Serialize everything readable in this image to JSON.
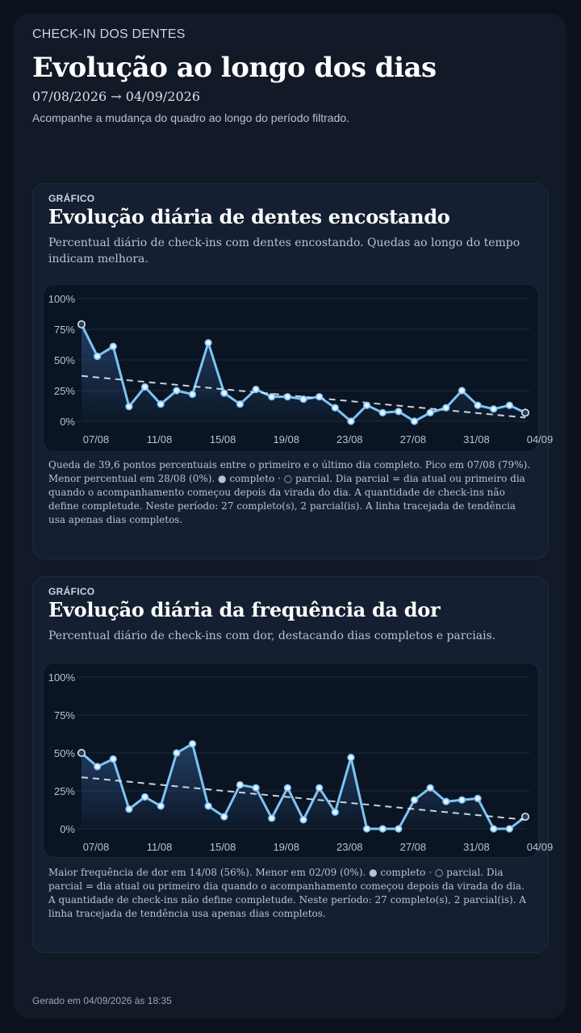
{
  "header": {
    "eyebrow": "CHECK-IN DOS DENTES",
    "title": "Evolução ao longo dos dias",
    "date_range": "07/08/2026 → 04/09/2026",
    "subtitle": "Acompanhe a mudança do quadro ao longo do período filtrado."
  },
  "cards": [
    {
      "label": "GRÁFICO",
      "title": "Evolução diária de dentes encostando",
      "description": "Percentual diário de check-ins com dentes encostando. Quedas ao longo do tempo indicam melhora.",
      "note": "Queda de 39,6 pontos percentuais entre o primeiro e o último dia completo. Pico em 07/08 (79%). Menor percentual em 28/08 (0%). ● completo · ○ parcial. Dia parcial = dia atual ou primeiro dia quando o acompanhamento começou depois da virada do dia. A quantidade de check-ins não define completude. Neste período: 27 completo(s), 2 parcial(is). A linha tracejada de tendência usa apenas dias completos."
    },
    {
      "label": "GRÁFICO",
      "title": "Evolução diária da frequência da dor",
      "description": "Percentual diário de check-ins com dor, destacando dias completos e parciais.",
      "note": "Maior frequência de dor em 14/08 (56%). Menor em 02/09 (0%). ● completo · ○ parcial. Dia parcial = dia atual ou primeiro dia quando o acompanhamento começou depois da virada do dia. A quantidade de check-ins não define completude. Neste período: 27 completo(s), 2 parcial(is). A linha tracejada de tendência usa apenas dias completos."
    }
  ],
  "footer": {
    "generated": "Gerado em 04/09/2026 às 18:35"
  },
  "chart_data": [
    {
      "type": "line",
      "title": "Evolução diária de dentes encostando",
      "x": [
        "07/08",
        "08/08",
        "09/08",
        "10/08",
        "11/08",
        "12/08",
        "13/08",
        "14/08",
        "15/08",
        "16/08",
        "17/08",
        "18/08",
        "19/08",
        "20/08",
        "21/08",
        "22/08",
        "23/08",
        "24/08",
        "25/08",
        "26/08",
        "27/08",
        "28/08",
        "29/08",
        "30/08",
        "31/08",
        "01/09",
        "02/09",
        "03/09",
        "04/09"
      ],
      "x_tick_labels": [
        "07/08",
        "11/08",
        "15/08",
        "19/08",
        "23/08",
        "27/08",
        "31/08",
        "04/09"
      ],
      "x_tick_indices": [
        0,
        4,
        8,
        12,
        16,
        20,
        24,
        28
      ],
      "y_ticks": [
        "0%",
        "25%",
        "50%",
        "75%",
        "100%"
      ],
      "ylim": [
        0,
        100
      ],
      "values": [
        79,
        53,
        61,
        12,
        28,
        14,
        25,
        22,
        64,
        23,
        14,
        26,
        20,
        20,
        18,
        20,
        11,
        0,
        13,
        7,
        8,
        0,
        7,
        11,
        25,
        13,
        10,
        13,
        7
      ],
      "partial_indices": [
        0,
        28
      ],
      "trend": {
        "start": 37,
        "end": 3
      },
      "grid": true,
      "legend": "none",
      "colors": {
        "line": "#7cc4f5",
        "trend": "#dfe7ef",
        "fill_top": "#2a4a78",
        "point_fill": "#e8f1fb"
      }
    },
    {
      "type": "line",
      "title": "Evolução diária da frequência da dor",
      "x": [
        "07/08",
        "08/08",
        "09/08",
        "10/08",
        "11/08",
        "12/08",
        "13/08",
        "14/08",
        "15/08",
        "16/08",
        "17/08",
        "18/08",
        "19/08",
        "20/08",
        "21/08",
        "22/08",
        "23/08",
        "24/08",
        "25/08",
        "26/08",
        "27/08",
        "28/08",
        "29/08",
        "30/08",
        "31/08",
        "01/09",
        "02/09",
        "03/09",
        "04/09"
      ],
      "x_tick_labels": [
        "07/08",
        "11/08",
        "15/08",
        "19/08",
        "23/08",
        "27/08",
        "31/08",
        "04/09"
      ],
      "x_tick_indices": [
        0,
        4,
        8,
        12,
        16,
        20,
        24,
        28
      ],
      "y_ticks": [
        "0%",
        "25%",
        "50%",
        "75%",
        "100%"
      ],
      "ylim": [
        0,
        100
      ],
      "values": [
        50,
        41,
        46,
        13,
        21,
        15,
        50,
        56,
        15,
        8,
        29,
        27,
        7,
        27,
        6,
        27,
        11,
        47,
        0,
        0,
        0,
        19,
        27,
        18,
        19,
        20,
        0,
        0,
        8
      ],
      "partial_indices": [
        0,
        28
      ],
      "trend": {
        "start": 34,
        "end": 6
      },
      "grid": true,
      "legend": "none",
      "colors": {
        "line": "#7cc4f5",
        "trend": "#dfe7ef",
        "fill_top": "#2a4a78",
        "point_fill": "#e8f1fb"
      }
    }
  ]
}
